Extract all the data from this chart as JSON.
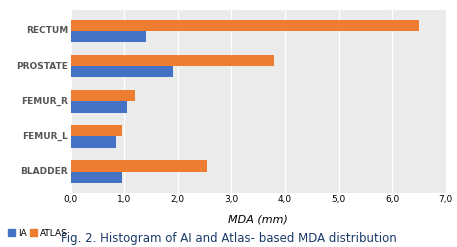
{
  "categories": [
    "BLADDER",
    "FEMUR_L",
    "FEMUR_R",
    "PROSTATE",
    "RECTUM"
  ],
  "ia_values": [
    0.95,
    0.85,
    1.05,
    1.9,
    1.4
  ],
  "atlas_values": [
    2.55,
    0.95,
    1.2,
    3.8,
    6.5
  ],
  "ia_color": "#4472c4",
  "atlas_color": "#ed7d31",
  "xlabel": "MDA (mm)",
  "xlim": [
    0,
    7.0
  ],
  "xticks": [
    0.0,
    1.0,
    2.0,
    3.0,
    4.0,
    5.0,
    6.0,
    7.0
  ],
  "xtick_labels": [
    "0,0",
    "1,0",
    "2,0",
    "3,0",
    "4,0",
    "5,0",
    "6,0",
    "7,0"
  ],
  "legend_ia": "IA",
  "legend_atlas": "ATLAS",
  "title": "Fig. 2. Histogram of AI and Atlas- based MDA distribution",
  "bar_height": 0.32,
  "plot_bg_color": "#ebebeb",
  "title_fontsize": 8.5,
  "axis_fontsize": 8,
  "tick_fontsize": 6.5,
  "ylabel_fontsize": 6.5
}
